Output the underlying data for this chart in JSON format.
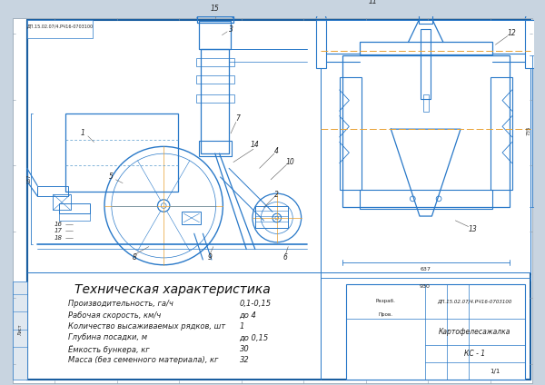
{
  "bg_color": "#c8d4e0",
  "page_color": "#f5f7fa",
  "line_color": "#2878c8",
  "line_color_dark": "#1a5ea0",
  "dim_line_color": "#3388cc",
  "centerline_color": "#e8a030",
  "title_text": "Техническая характеристика",
  "label_color": "#222222",
  "specs": [
    [
      "Производительность, га/ч",
      "0,1-0,15"
    ],
    [
      "Рабочая скорость, км/ч",
      "до 4"
    ],
    [
      "Количество высаживаемых рядков, шт",
      "1"
    ],
    [
      "Глубина посадки, м",
      "до 0,15"
    ],
    [
      "Ёмкость бункера, кг",
      "30"
    ],
    [
      "Масса (без семенного материала), кг",
      "32"
    ]
  ],
  "title_block": {
    "doc_number": "ДП.15.02.07/4.РЧ16-0703100",
    "name": "Картофелесажалка",
    "designation": "КС - 1",
    "sheet": "1/1"
  }
}
